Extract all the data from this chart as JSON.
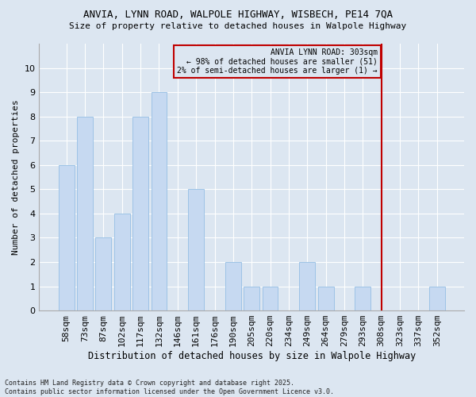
{
  "title1": "ANVIA, LYNN ROAD, WALPOLE HIGHWAY, WISBECH, PE14 7QA",
  "title2": "Size of property relative to detached houses in Walpole Highway",
  "xlabel": "Distribution of detached houses by size in Walpole Highway",
  "ylabel": "Number of detached properties",
  "categories": [
    "58sqm",
    "73sqm",
    "87sqm",
    "102sqm",
    "117sqm",
    "132sqm",
    "146sqm",
    "161sqm",
    "176sqm",
    "190sqm",
    "205sqm",
    "220sqm",
    "234sqm",
    "249sqm",
    "264sqm",
    "279sqm",
    "293sqm",
    "308sqm",
    "323sqm",
    "337sqm",
    "352sqm"
  ],
  "values": [
    6,
    8,
    3,
    4,
    8,
    9,
    0,
    5,
    0,
    2,
    1,
    1,
    0,
    2,
    1,
    0,
    1,
    0,
    0,
    0,
    1
  ],
  "bar_color": "#c6d9f1",
  "bar_edge_color": "#9dc3e6",
  "vline_x_index": 17,
  "vline_color": "#c00000",
  "annotation_text": "ANVIA LYNN ROAD: 303sqm\n← 98% of detached houses are smaller (51)\n2% of semi-detached houses are larger (1) →",
  "ylim": [
    0,
    11
  ],
  "yticks": [
    0,
    1,
    2,
    3,
    4,
    5,
    6,
    7,
    8,
    9,
    10,
    11
  ],
  "background_color": "#dce6f1",
  "grid_color": "#ffffff",
  "footnote": "Contains HM Land Registry data © Crown copyright and database right 2025.\nContains public sector information licensed under the Open Government Licence v3.0."
}
